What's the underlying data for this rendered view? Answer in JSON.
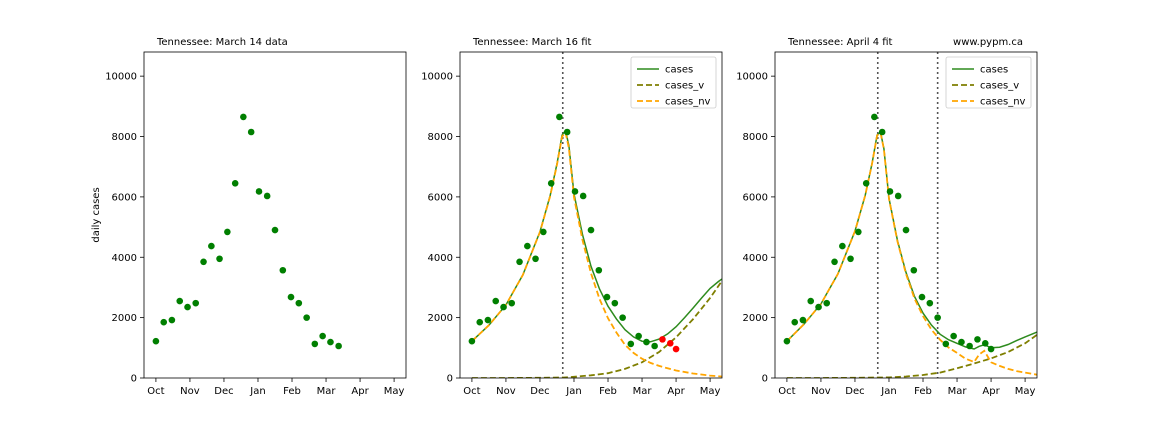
{
  "colors": {
    "cases": "#2e8b1e",
    "cases_v": "#7f7f00",
    "cases_nv": "#ffa500",
    "data_point": "#007f00",
    "projection_point": "#ff0000",
    "vline": "#555555"
  },
  "chart_data": [
    {
      "type": "scatter",
      "title": "Tennessee:  March 14 data",
      "right_title": "",
      "ylabel": "daily cases",
      "xlim": [
        -0.35,
        7.35
      ],
      "ylim": [
        0,
        10800
      ],
      "xticks": [
        "Oct",
        "Nov",
        "Dec",
        "Jan",
        "Feb",
        "Mar",
        "Apr",
        "May"
      ],
      "yticks": [
        0,
        2000,
        4000,
        6000,
        8000,
        10000
      ],
      "grid": false,
      "legend": null,
      "data": {
        "x": [
          0.0,
          0.23,
          0.47,
          0.7,
          0.93,
          1.17,
          1.4,
          1.63,
          1.87,
          2.1,
          2.33,
          2.57,
          2.8,
          3.03,
          3.27,
          3.5,
          3.73,
          3.97,
          4.2,
          4.43,
          4.67,
          4.9,
          5.13,
          5.37,
          5.6
        ],
        "y": [
          1220,
          1850,
          1920,
          2550,
          2350,
          2480,
          3850,
          4370,
          3950,
          4840,
          6450,
          8650,
          8150,
          6180,
          6030,
          4900,
          3570,
          2680,
          2480,
          2000,
          1130,
          1390,
          1190,
          1060,
          null
        ]
      },
      "projection": null,
      "vlines": [],
      "curves": []
    },
    {
      "type": "line",
      "title": "Tennessee:  March 16 fit",
      "right_title": "",
      "ylabel": "",
      "xlim": [
        -0.35,
        7.35
      ],
      "ylim": [
        0,
        10800
      ],
      "xticks": [
        "Oct",
        "Nov",
        "Dec",
        "Jan",
        "Feb",
        "Mar",
        "Apr",
        "May"
      ],
      "yticks": [
        0,
        2000,
        4000,
        6000,
        8000,
        10000
      ],
      "grid": false,
      "legend": {
        "position": "top-right",
        "entries": [
          "cases",
          "cases_v",
          "cases_nv"
        ]
      },
      "data": {
        "x": [
          0.0,
          0.23,
          0.47,
          0.7,
          0.93,
          1.17,
          1.4,
          1.63,
          1.87,
          2.1,
          2.33,
          2.57,
          2.8,
          3.03,
          3.27,
          3.5,
          3.73,
          3.97,
          4.2,
          4.43,
          4.67,
          4.9,
          5.13,
          5.37
        ],
        "y": [
          1220,
          1850,
          1920,
          2550,
          2350,
          2480,
          3850,
          4370,
          3950,
          4840,
          6450,
          8650,
          8150,
          6180,
          6030,
          4900,
          3570,
          2680,
          2480,
          2000,
          1130,
          1390,
          1190,
          1060
        ]
      },
      "projection": {
        "x": [
          5.6,
          5.83,
          6.0
        ],
        "y": [
          1280,
          1150,
          960
        ]
      },
      "vlines": [
        2.67
      ],
      "curves": [
        {
          "name": "cases",
          "style": "solid",
          "x": [
            0.0,
            0.5,
            1.0,
            1.5,
            2.0,
            2.3,
            2.5,
            2.65,
            2.75,
            2.85,
            3.0,
            3.25,
            3.5,
            3.75,
            4.0,
            4.25,
            4.5,
            4.75,
            5.0,
            5.25,
            5.5,
            5.75,
            6.0,
            6.25,
            6.5,
            6.75,
            7.0,
            7.25,
            7.35
          ],
          "y": [
            1220,
            1750,
            2420,
            3420,
            4850,
            6050,
            7100,
            8050,
            8200,
            7700,
            6100,
            4750,
            3700,
            2950,
            2380,
            1950,
            1600,
            1360,
            1220,
            1200,
            1290,
            1460,
            1700,
            2000,
            2320,
            2650,
            2970,
            3200,
            3280
          ]
        },
        {
          "name": "cases_v",
          "style": "dashed",
          "x": [
            0.0,
            1.0,
            2.0,
            2.7,
            3.0,
            3.5,
            4.0,
            4.5,
            5.0,
            5.5,
            6.0,
            6.5,
            7.0,
            7.35
          ],
          "y": [
            0,
            0,
            5,
            15,
            40,
            90,
            160,
            300,
            520,
            860,
            1350,
            1950,
            2650,
            3220
          ]
        },
        {
          "name": "cases_nv",
          "style": "dashed",
          "x": [
            0.0,
            0.5,
            1.0,
            1.5,
            2.0,
            2.3,
            2.5,
            2.65,
            2.75,
            2.85,
            3.0,
            3.25,
            3.5,
            3.75,
            4.0,
            4.25,
            4.5,
            4.75,
            5.0,
            5.25,
            5.5,
            5.75,
            6.0,
            6.5,
            7.0,
            7.35
          ],
          "y": [
            1220,
            1750,
            2420,
            3420,
            4840,
            6030,
            7070,
            8000,
            8140,
            7610,
            5990,
            4570,
            3470,
            2620,
            1980,
            1500,
            1100,
            830,
            640,
            500,
            400,
            320,
            250,
            150,
            80,
            50
          ]
        }
      ]
    },
    {
      "type": "line",
      "title": "Tennessee:  April 4 fit",
      "right_title": "www.pypm.ca",
      "ylabel": "",
      "xlim": [
        -0.35,
        7.35
      ],
      "ylim": [
        0,
        10800
      ],
      "xticks": [
        "Oct",
        "Nov",
        "Dec",
        "Jan",
        "Feb",
        "Mar",
        "Apr",
        "May"
      ],
      "yticks": [
        0,
        2000,
        4000,
        6000,
        8000,
        10000
      ],
      "grid": false,
      "legend": {
        "position": "top-right",
        "entries": [
          "cases",
          "cases_v",
          "cases_nv"
        ]
      },
      "data": {
        "x": [
          0.0,
          0.23,
          0.47,
          0.7,
          0.93,
          1.17,
          1.4,
          1.63,
          1.87,
          2.1,
          2.33,
          2.57,
          2.8,
          3.03,
          3.27,
          3.5,
          3.73,
          3.97,
          4.2,
          4.43,
          4.67,
          4.9,
          5.13,
          5.37,
          5.6,
          5.83,
          6.0
        ],
        "y": [
          1220,
          1850,
          1920,
          2550,
          2350,
          2480,
          3850,
          4370,
          3950,
          4840,
          6450,
          8650,
          8150,
          6180,
          6030,
          4900,
          3570,
          2680,
          2480,
          2000,
          1130,
          1390,
          1190,
          1060,
          1280,
          1150,
          960
        ]
      },
      "projection": null,
      "vlines": [
        2.67,
        4.43
      ],
      "curves": [
        {
          "name": "cases",
          "style": "solid",
          "x": [
            0.0,
            0.5,
            1.0,
            1.5,
            2.0,
            2.3,
            2.5,
            2.65,
            2.75,
            2.85,
            3.0,
            3.25,
            3.5,
            3.75,
            4.0,
            4.25,
            4.5,
            4.75,
            5.0,
            5.25,
            5.5,
            5.65,
            5.8,
            6.0,
            6.25,
            6.5,
            6.75,
            7.0,
            7.35
          ],
          "y": [
            1220,
            1780,
            2450,
            3450,
            4870,
            6050,
            7100,
            8050,
            8150,
            7600,
            5950,
            4550,
            3500,
            2700,
            2150,
            1750,
            1450,
            1270,
            1150,
            1030,
            960,
            1050,
            1100,
            1000,
            1020,
            1110,
            1240,
            1360,
            1520
          ]
        },
        {
          "name": "cases_v",
          "style": "dashed",
          "x": [
            0.0,
            1.0,
            2.0,
            3.0,
            3.5,
            4.0,
            4.5,
            5.0,
            5.5,
            6.0,
            6.5,
            7.0,
            7.35
          ],
          "y": [
            0,
            0,
            5,
            20,
            50,
            100,
            180,
            320,
            480,
            650,
            860,
            1150,
            1430
          ]
        },
        {
          "name": "cases_nv",
          "style": "dashed",
          "x": [
            0.0,
            0.5,
            1.0,
            1.5,
            2.0,
            2.3,
            2.5,
            2.65,
            2.75,
            2.85,
            3.0,
            3.25,
            3.5,
            3.75,
            4.0,
            4.25,
            4.5,
            4.75,
            5.0,
            5.25,
            5.5,
            5.65,
            5.8,
            6.0,
            6.25,
            6.5,
            6.75,
            7.0,
            7.35
          ],
          "y": [
            1220,
            1780,
            2450,
            3450,
            4865,
            6045,
            7090,
            8035,
            8130,
            7580,
            5930,
            4520,
            3450,
            2630,
            2050,
            1600,
            1270,
            1010,
            830,
            640,
            530,
            780,
            900,
            520,
            400,
            300,
            230,
            180,
            110
          ]
        }
      ]
    }
  ]
}
